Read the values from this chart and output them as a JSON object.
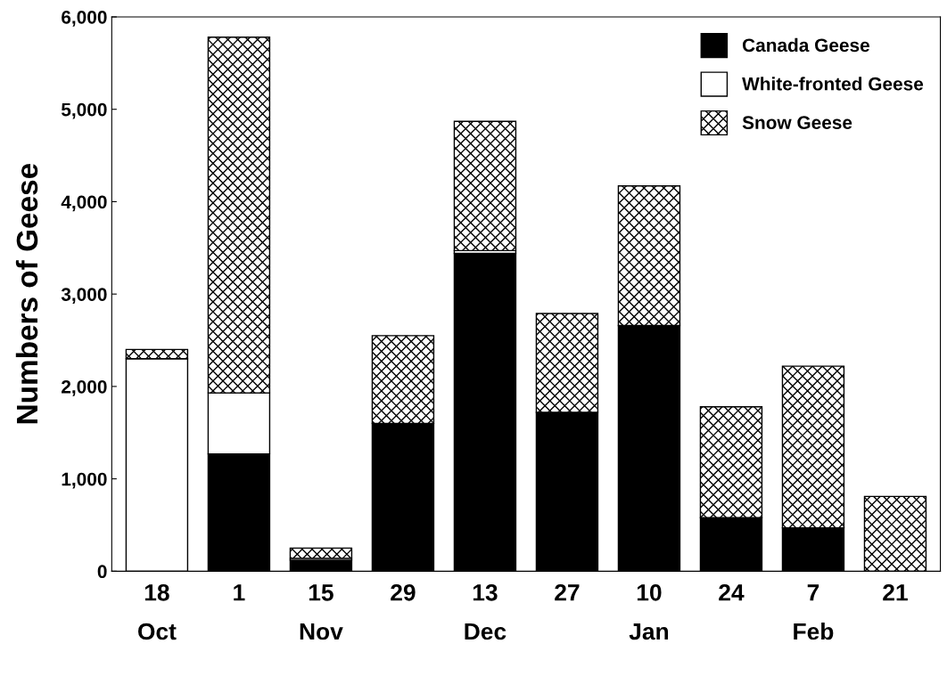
{
  "chart_data": {
    "type": "bar",
    "stacked": true,
    "ylabel": "Numbers of Geese",
    "categories": [
      "18\nOct",
      "1",
      "15\nNov",
      "29",
      "13\nDec",
      "27",
      "10\nJan",
      "24",
      "7\nFeb",
      "21"
    ],
    "series": [
      {
        "name": "Canada Geese",
        "color": "#000000",
        "values": [
          null,
          1270,
          120,
          1600,
          3440,
          1720,
          2660,
          580,
          470,
          null
        ]
      },
      {
        "name": "White-fronted Geese",
        "color": "#ffffff",
        "values": [
          2300,
          660,
          20,
          null,
          30,
          null,
          null,
          null,
          null,
          null
        ]
      },
      {
        "name": "Snow Geese",
        "color": "#000000",
        "values": [
          100,
          3850,
          110,
          950,
          1400,
          1070,
          1510,
          1200,
          1750,
          810
        ]
      }
    ],
    "ylim": [
      0,
      6000
    ],
    "yticks": [
      {
        "value": 0,
        "label": "0"
      },
      {
        "value": 1000,
        "label": "1,000"
      },
      {
        "value": 2000,
        "label": "2,000"
      },
      {
        "value": 3000,
        "label": "3,000"
      },
      {
        "value": 4000,
        "label": "4,000"
      },
      {
        "value": 5000,
        "label": "5,000"
      },
      {
        "value": 6000,
        "label": "6,000"
      }
    ],
    "grid": false,
    "legend": "top right"
  }
}
